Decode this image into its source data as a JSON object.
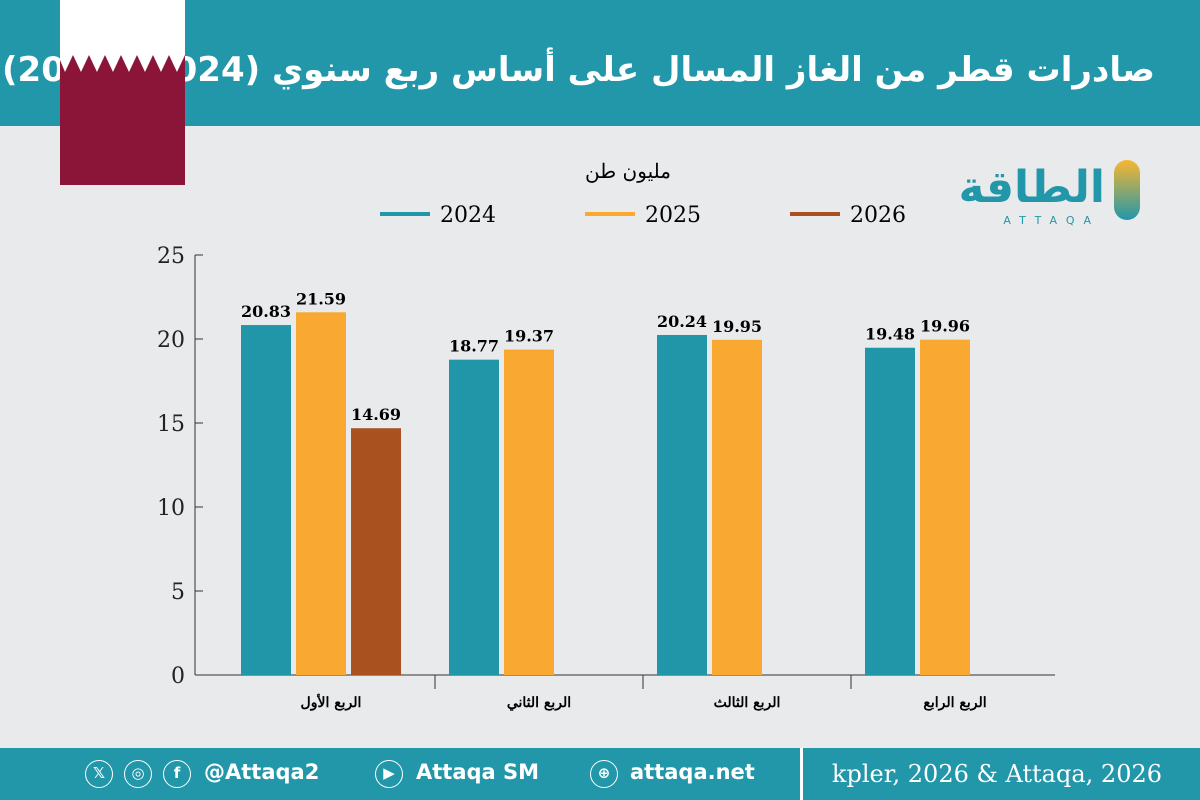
{
  "header": {
    "title": "صادرات قطر من الغاز المسال على أساس ربع سنوي (2024 - 2026)"
  },
  "logo": {
    "text": "الطاقة",
    "latin": "ATTAQA"
  },
  "colors": {
    "header": "#2297aa",
    "flag_maroon": "#8a1538"
  },
  "chart_data": {
    "type": "bar",
    "title": "",
    "ylabel": "مليون طن",
    "xlabel": "",
    "categories": [
      "الربع الأول",
      "الربع الثاني",
      "الربع الثالث",
      "الربع الرابع"
    ],
    "series": [
      {
        "name": "2024",
        "color": "#2196a8",
        "values": [
          20.83,
          18.77,
          20.24,
          19.48
        ]
      },
      {
        "name": "2025",
        "color": "#f9a832",
        "values": [
          21.59,
          19.37,
          19.95,
          19.96
        ]
      },
      {
        "name": "2026",
        "color": "#a9521f",
        "values": [
          14.69,
          null,
          null,
          null
        ]
      }
    ],
    "ylim": [
      0,
      25
    ],
    "yticks": [
      0,
      5,
      10,
      15,
      20,
      25
    ],
    "grid": false,
    "legend": "top"
  },
  "footer": {
    "handle": "@Attaqa2",
    "youtube": "Attaqa SM",
    "website": "attaqa.net",
    "source": "kpler, 2026 & Attaqa, 2026",
    "icons": [
      "x-icon",
      "instagram-icon",
      "facebook-icon",
      "youtube-icon",
      "globe-icon"
    ]
  }
}
